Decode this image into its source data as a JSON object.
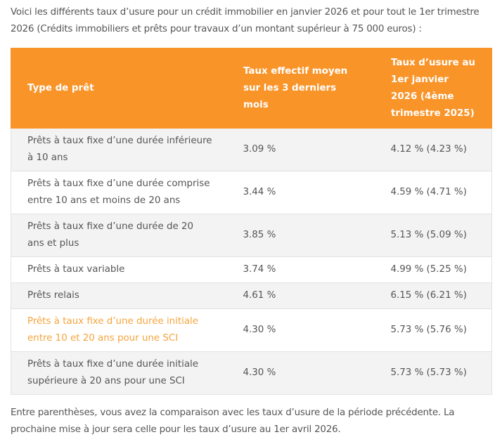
{
  "intro": "Voici les différents taux d’usure pour un crédit immobilier en janvier 2026 et pour tout le 1er trimestre 2026 (Crédits immobiliers et prêts pour travaux d’un montant supérieur à 75 000 euros) :",
  "table": {
    "headers": [
      "Type de prêt",
      "Taux effectif moyen sur les 3 derniers mois",
      "Taux d’usure au 1er janvier 2026 (4ème trimestre 2025)"
    ],
    "rows": [
      [
        "Prêts à taux fixe d’une durée inférieure à 10 ans",
        "3.09 %",
        "4.12 % (4.23 %)"
      ],
      [
        "Prêts à taux fixe d’une durée comprise entre 10 ans et moins de 20 ans",
        "3.44 %",
        "4.59 % (4.71 %)"
      ],
      [
        "Prêts à taux fixe d’une durée de 20 ans et plus",
        "3.85 %",
        "5.13 % (5.09 %)"
      ],
      [
        "Prêts à taux variable",
        "3.74 %",
        "4.99 % (5.25 %)"
      ],
      [
        "Prêts relais",
        "4.61 %",
        "6.15 % (6.21 %)"
      ],
      [
        "Prêts à taux fixe d’une durée initiale entre 10 et 20 ans pour une SCI",
        "4.30 %",
        "5.73 % (5.76 %)"
      ],
      [
        "Prêts à taux fixe d’une durée initiale supérieure à 20 ans pour une SCI",
        "4.30 %",
        "5.73 % (5.73 %)"
      ]
    ],
    "highlight_row": 5
  },
  "outro": "Entre parenthèses, vous avez la comparaison avec les taux d’usure de la période précédente. La prochaine mise à jour sera celle pour les taux d’usure au 1er avril 2026."
}
